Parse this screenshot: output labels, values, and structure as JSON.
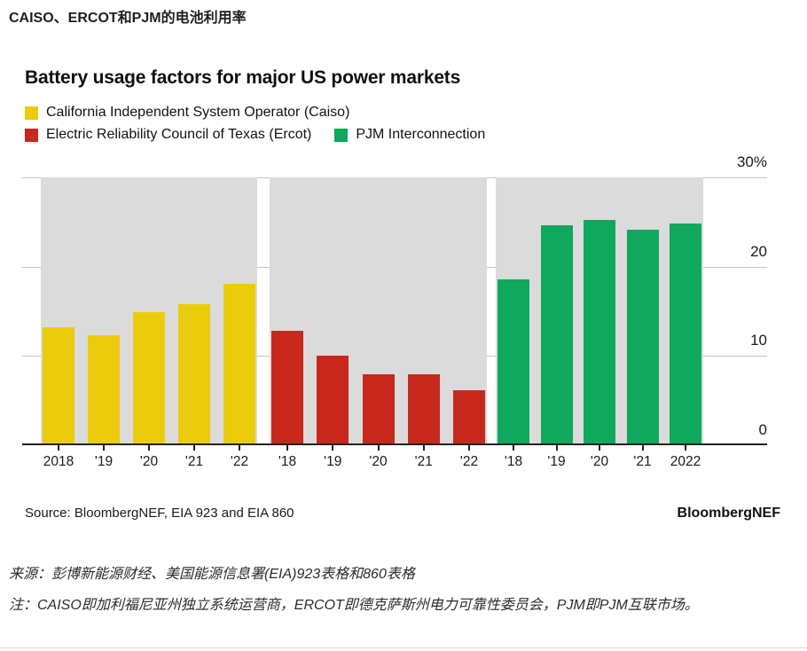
{
  "page": {
    "title": "CAISO、ERCOT和PJM的电池利用率"
  },
  "chart_data": {
    "type": "bar",
    "title": "Battery usage factors for major US power markets",
    "xlabel": "",
    "ylabel": "",
    "unit": "%",
    "ylim": [
      0,
      30
    ],
    "yticks": [
      "0",
      "10",
      "20",
      "30%"
    ],
    "grid": true,
    "legend_position": "top-left",
    "group_panel_color": "#dbdbdb",
    "series": [
      {
        "name": "California Independent System Operator (Caiso)",
        "color": "#eacc0c",
        "categories": [
          "2018",
          "'19",
          "'20",
          "'21",
          "'22"
        ],
        "values": [
          13.1,
          12.2,
          14.8,
          15.7,
          18.0
        ]
      },
      {
        "name": "Electric Reliability Council of Texas (Ercot)",
        "color": "#c8281c",
        "categories": [
          "'18",
          "'19",
          "'20",
          "'21",
          "'22"
        ],
        "values": [
          12.7,
          9.9,
          7.8,
          7.8,
          6.0
        ]
      },
      {
        "name": "PJM Interconnection",
        "color": "#0fa85c",
        "categories": [
          "'18",
          "'19",
          "'20",
          "'21",
          "2022"
        ],
        "values": [
          18.5,
          24.6,
          25.2,
          24.1,
          24.8
        ]
      }
    ]
  },
  "source": {
    "text": "Source: BloombergNEF, EIA 923 and EIA 860",
    "brand": "BloombergNEF"
  },
  "footer": {
    "line1": "来源：彭博新能源财经、美国能源信息署(EIA)923表格和860表格",
    "line2": "注：CAISO即加利福尼亚州独立系统运营商，ERCOT即德克萨斯州电力可靠性委员会，PJM即PJM互联市场。"
  }
}
